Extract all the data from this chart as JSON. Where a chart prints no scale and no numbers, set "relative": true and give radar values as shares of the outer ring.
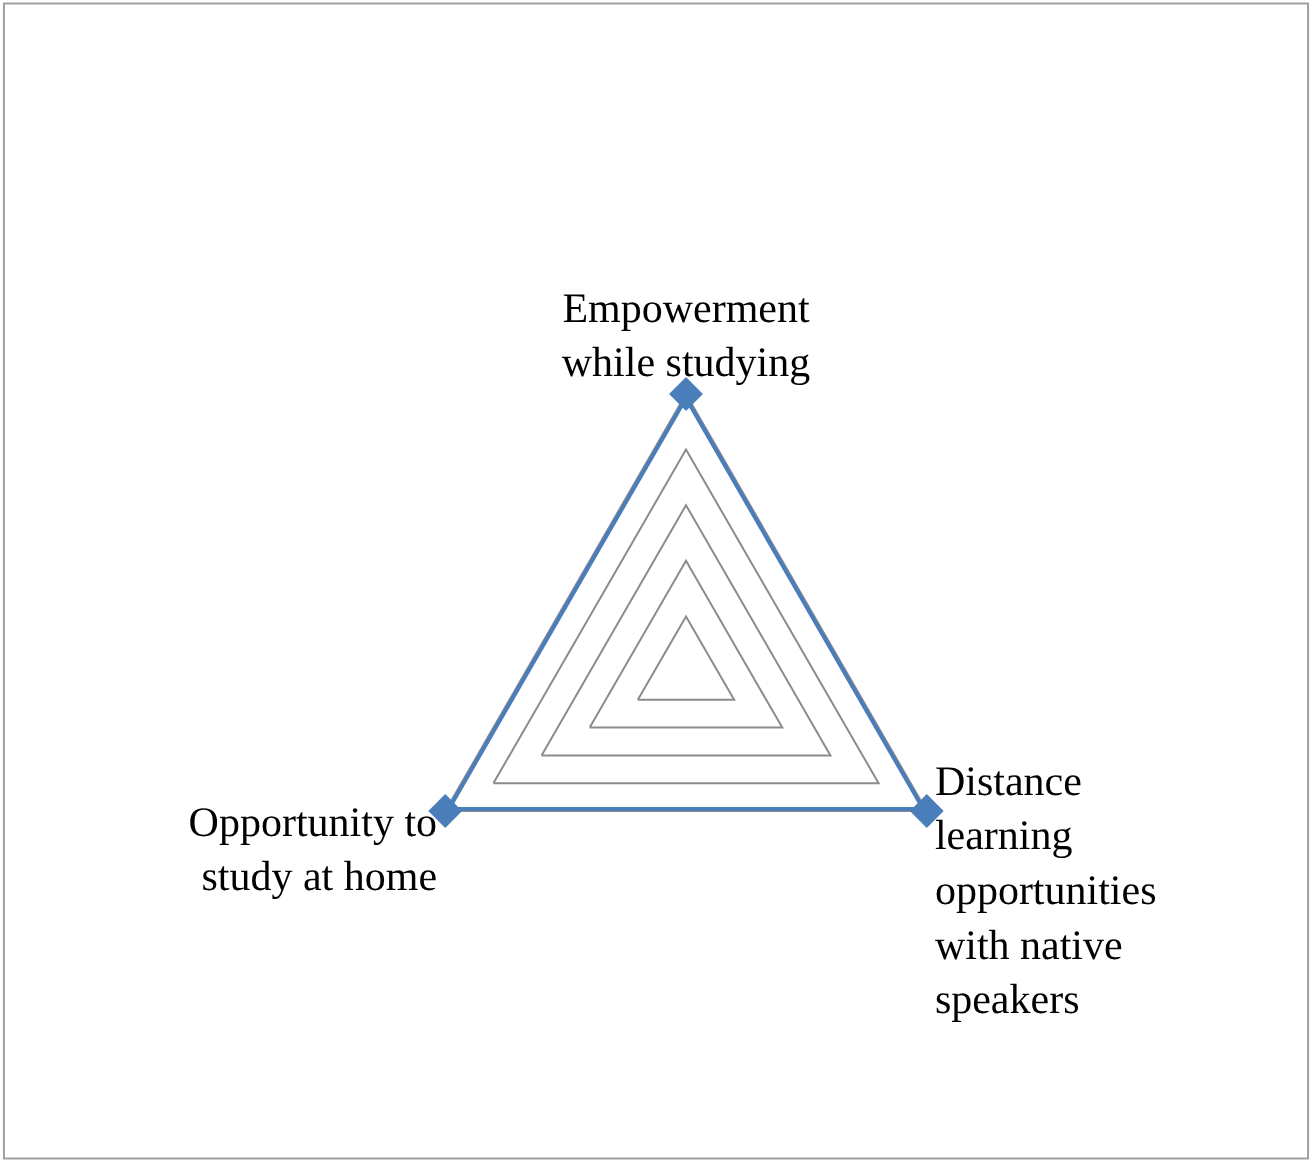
{
  "chart_data": {
    "type": "radar",
    "relative": true,
    "grid": true,
    "marker": "diamond",
    "categories": [
      "Empowerment\nwhile studying",
      "Distance\nlearning\nopportunities\nwith native\nspeakers",
      "Opportunity to\nstudy at home"
    ],
    "series": [
      {
        "color": "#4a7ebb",
        "values": [
          1,
          1,
          1
        ]
      }
    ]
  }
}
